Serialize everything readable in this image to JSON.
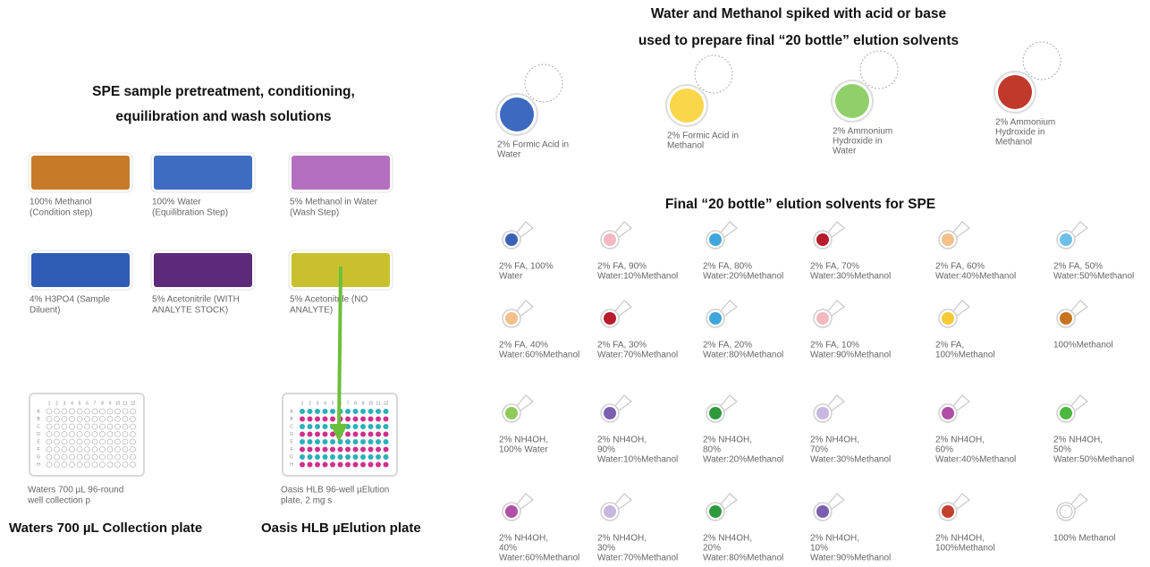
{
  "left": {
    "title": [
      "SPE sample pretreatment, conditioning,",
      "equilibration and  wash solutions"
    ],
    "tiles": [
      {
        "color": "#c87a2a",
        "label": [
          "100% Methanol",
          "(Condition step)"
        ]
      },
      {
        "color": "#3e6cc0",
        "label": [
          "100% Water",
          "(Equilibration Step)"
        ]
      },
      {
        "color": "#b56fc0",
        "label": [
          "5% Methanol in Water",
          "(Wash Step)"
        ]
      },
      {
        "color": "#2f5cb5",
        "label": [
          "4% H3PO4 (Sample",
          "Diluent)"
        ]
      },
      {
        "color": "#5c2a78",
        "label": [
          "5% Acetonitrile (WITH",
          "ANALYTE STOCK)"
        ]
      },
      {
        "color": "#c8c02e",
        "label": [
          "5% Acetonitrile (NO",
          "ANALYTE)"
        ]
      }
    ],
    "plate_grid": {
      "columns": [
        "1",
        "2",
        "3",
        "4",
        "5",
        "6",
        "7",
        "8",
        "9",
        "10",
        "11",
        "12"
      ],
      "rows": [
        "A",
        "B",
        "C",
        "D",
        "E",
        "F",
        "G",
        "H"
      ]
    },
    "plates": [
      {
        "caption": [
          "Waters 700 µL 96-round",
          "well collection p"
        ],
        "label": "Waters 700 µL Collection plate"
      },
      {
        "caption": [
          "Oasis HLB 96-well µElution",
          "plate, 2 mg s"
        ],
        "label": "Oasis HLB µElution plate"
      }
    ]
  },
  "right": {
    "title": [
      "Water and Methanol spiked with acid or base",
      "used to prepare final “20 bottle” elution solvents"
    ],
    "stocks": [
      {
        "color": "#3d6ac0",
        "label": [
          "2% Formic Acid in",
          "Water"
        ]
      },
      {
        "color": "#f9d64a",
        "label": [
          "2% Formic Acid in",
          "Methanol"
        ]
      },
      {
        "color": "#8fd06a",
        "label": [
          "2% Ammonium",
          "Hydroxide in",
          "Water"
        ]
      },
      {
        "color": "#c0392b",
        "label": [
          "2% Ammonium",
          "Hydroxide in",
          "Methanol"
        ]
      }
    ],
    "subtitle": "Final “20 bottle” elution solvents for SPE",
    "bottles": [
      {
        "color": "#3a63b8",
        "label": [
          "2% FA, 100%",
          "Water"
        ]
      },
      {
        "color": "#f4b8c0",
        "label": [
          "2% FA, 90%",
          "Water:10%Methanol"
        ]
      },
      {
        "color": "#3fa6dc",
        "label": [
          "2% FA, 80%",
          "Water:20%Methanol"
        ]
      },
      {
        "color": "#b81c2c",
        "label": [
          "2% FA, 70%",
          "Water:30%Methanol"
        ]
      },
      {
        "color": "#f5c08a",
        "label": [
          "2% FA, 60%",
          "Water:40%Methanol"
        ]
      },
      {
        "color": "#6cc0e8",
        "label": [
          "2% FA, 50%",
          "Water:50%Methanol"
        ]
      },
      {
        "color": "#f5c08a",
        "label": [
          "2% FA, 40%",
          "Water:60%Methanol"
        ]
      },
      {
        "color": "#b81c2c",
        "label": [
          "2% FA, 30%",
          "Water:70%Methanol"
        ]
      },
      {
        "color": "#3fa6dc",
        "label": [
          "2% FA, 20%",
          "Water:80%Methanol"
        ]
      },
      {
        "color": "#f4b8c0",
        "label": [
          "2% FA, 10%",
          "Water:90%Methanol"
        ]
      },
      {
        "color": "#f7c935",
        "label": [
          "2% FA,",
          "100%Methanol"
        ]
      },
      {
        "color": "#c8731f",
        "label": [
          "100%Methanol"
        ]
      },
      {
        "color": "#8dcb5a",
        "label": [
          "2% NH4OH,",
          "100% Water"
        ]
      },
      {
        "color": "#7a5fb0",
        "label": [
          "2% NH4OH,",
          "90%",
          "Water:10%Methanol"
        ]
      },
      {
        "color": "#2e9a3c",
        "label": [
          "2% NH4OH,",
          "80%",
          "Water:20%Methanol"
        ]
      },
      {
        "color": "#c7b6de",
        "label": [
          "2% NH4OH,",
          "70%",
          "Water:30%Methanol"
        ]
      },
      {
        "color": "#b04fa6",
        "label": [
          "2% NH4OH,",
          "60%",
          "Water:40%Methanol"
        ]
      },
      {
        "color": "#4cb83f",
        "label": [
          "2% NH4OH,",
          "50%",
          "Water:50%Methanol"
        ]
      },
      {
        "color": "#b04fa6",
        "label": [
          "2% NH4OH,",
          "40%",
          "Water:60%Methanol"
        ]
      },
      {
        "color": "#c7b6de",
        "label": [
          "2% NH4OH,",
          "30%",
          "Water:70%Methanol"
        ]
      },
      {
        "color": "#2e9a3c",
        "label": [
          "2% NH4OH,",
          "20%",
          "Water:80%Methanol"
        ]
      },
      {
        "color": "#7a5fb0",
        "label": [
          "2% NH4OH,",
          "10%",
          "Water:90%Methanol"
        ]
      },
      {
        "color": "#c2402c",
        "label": [
          "2% NH4OH,",
          "100%Methanol"
        ]
      },
      {
        "color": "#ffffff",
        "label": [
          "100% Methanol"
        ]
      }
    ]
  }
}
